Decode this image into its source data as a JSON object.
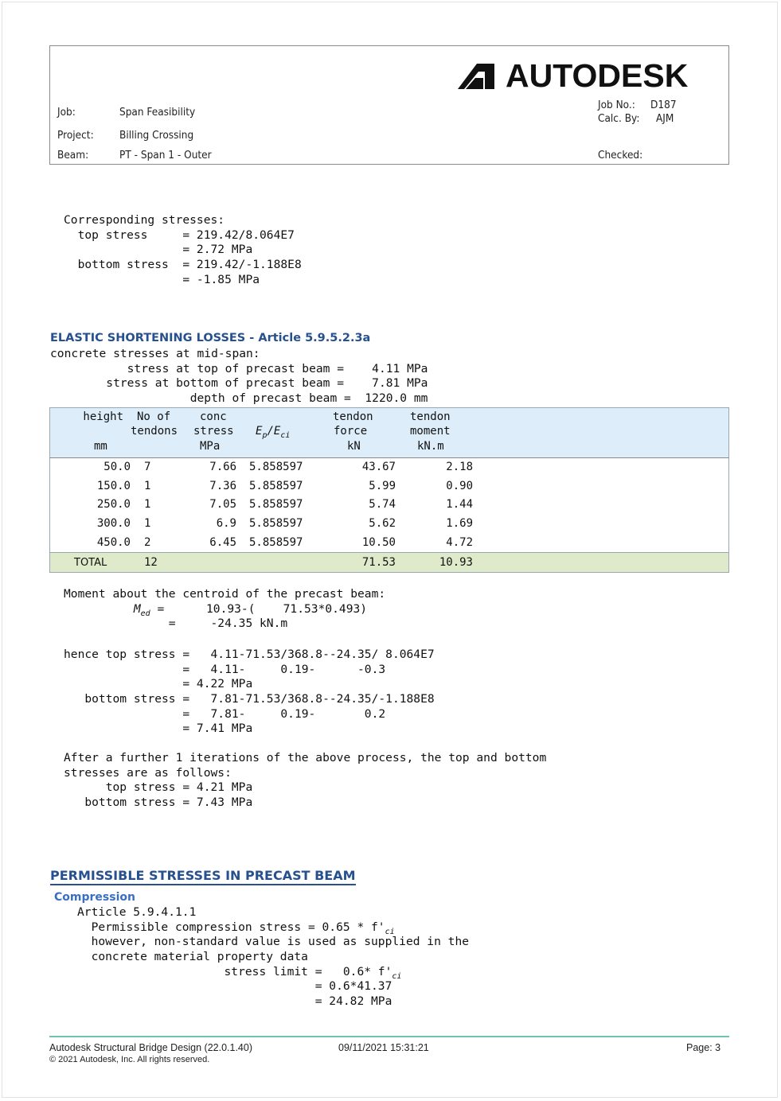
{
  "header": {
    "logo_text": "AUTODESK",
    "job_label": "Job:",
    "job_value": "Span Feasibility",
    "project_label": "Project:",
    "project_value": "Billing Crossing",
    "beam_label": "Beam:",
    "beam_value": "PT - Span 1 - Outer",
    "job_no_label": "Job No.:",
    "job_no_value": "D187",
    "calc_by_label": "Calc. By:",
    "calc_by_value": "AJM",
    "checked_label": "Checked:"
  },
  "stresses_block": [
    "Corresponding stresses:",
    "  top stress     = 219.42/8.064E7",
    "                 = 2.72 MPa",
    "  bottom stress  = 219.42/-1.188E8",
    "                 = -1.85 MPa"
  ],
  "elastic": {
    "heading": "ELASTIC SHORTENING LOSSES - Article 5.9.5.2.3a",
    "lines": [
      "concrete stresses at mid-span:",
      "           stress at top of precast beam =    4.11 MPa",
      "        stress at bottom of precast beam =    7.81 MPa",
      "                    depth of precast beam =  1220.0 mm"
    ],
    "table": {
      "headers": {
        "height": "height",
        "height_unit": "mm",
        "no_of": "No of",
        "tendons": "tendons",
        "conc": "conc",
        "stress": "stress",
        "stress_unit": "MPa",
        "ratio_ep": "E",
        "ratio_ep_sub": "p",
        "ratio_slash": "/E",
        "ratio_eci_sub": "ci",
        "force1": "tendon",
        "force2": "force",
        "force_unit": "kN",
        "moment1": "tendon",
        "moment2": "moment",
        "moment_unit": "kN.m"
      },
      "rows": [
        {
          "height": "50.0",
          "tendons": "7",
          "stress": "7.66",
          "ratio": "5.858597",
          "force": "43.67",
          "moment": "2.18"
        },
        {
          "height": "150.0",
          "tendons": "1",
          "stress": "7.36",
          "ratio": "5.858597",
          "force": "5.99",
          "moment": "0.90"
        },
        {
          "height": "250.0",
          "tendons": "1",
          "stress": "7.05",
          "ratio": "5.858597",
          "force": "5.74",
          "moment": "1.44"
        },
        {
          "height": "300.0",
          "tendons": "1",
          "stress": "6.9",
          "ratio": "5.858597",
          "force": "5.62",
          "moment": "1.69"
        },
        {
          "height": "450.0",
          "tendons": "2",
          "stress": "6.45",
          "ratio": "5.858597",
          "force": "10.50",
          "moment": "4.72"
        }
      ],
      "total": {
        "label": "TOTAL",
        "tendons": "12",
        "force": "71.53",
        "moment": "10.93"
      }
    }
  },
  "moment_block": {
    "line1": "Moment about the centroid of the precast beam:",
    "med_prefix": "          M",
    "med_sub": "ed",
    "med_rest": " =      10.93-(    71.53*0.493)",
    "line3": "               =     -24.35 kN.m"
  },
  "hence_block": [
    "hence top stress =   4.11-71.53/368.8--24.35/ 8.064E7",
    "                 =   4.11-     0.19-      -0.3",
    "                 = 4.22 MPa",
    "   bottom stress =   7.81-71.53/368.8--24.35/-1.188E8",
    "                 =   7.81-     0.19-       0.2",
    "                 = 7.41 MPa"
  ],
  "iteration_block": [
    "After a further 1 iterations of the above process, the top and bottom",
    "stresses are as follows:",
    "      top stress = 4.21 MPa",
    "   bottom stress = 7.43 MPa"
  ],
  "permissible": {
    "heading": "PERMISSIBLE STRESSES IN PRECAST BEAM",
    "subheading": "Compression",
    "article": "Article 5.9.4.1.1",
    "line1_text": "  Permissible compression stress = 0.65 * f'",
    "line1_sub": "ci",
    "line2": "  however, non-standard value is used as supplied in the",
    "line3": "  concrete material property data",
    "line4_text": "                     stress limit =   0.6* f'",
    "line4_sub": "ci",
    "line5": "                                  = 0.6*41.37",
    "line6": "                                  = 24.82 MPa"
  },
  "footer": {
    "product": "Autodesk Structural Bridge Design (22.0.1.40)",
    "copyright": "© 2021 Autodesk, Inc. All rights reserved.",
    "timestamp": "09/11/2021 15:31:21",
    "page": "Page: 3"
  },
  "colors": {
    "heading_blue": "#27508f",
    "table_header_bg": "#ddeefa",
    "total_row_bg": "#dfeacb",
    "footer_rule": "#6cc4b6"
  }
}
